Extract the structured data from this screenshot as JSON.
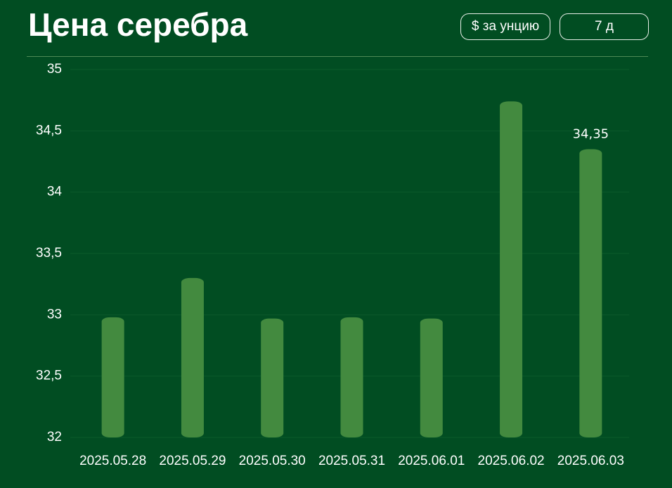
{
  "controls": {
    "unit": "$ за унцию",
    "period": "7 д"
  },
  "chart_data": {
    "type": "bar",
    "title": "Цена серебра",
    "categories": [
      "2025.05.28",
      "2025.05.29",
      "2025.05.30",
      "2025.05.31",
      "2025.06.01",
      "2025.06.02",
      "2025.06.03"
    ],
    "values": [
      32.98,
      33.3,
      32.97,
      32.98,
      32.97,
      34.74,
      34.35
    ],
    "value_labels": [
      null,
      null,
      null,
      null,
      null,
      null,
      "34,35"
    ],
    "color": "#438a3f",
    "ylim": [
      32,
      35
    ],
    "yticks": [
      32,
      {
        "value": 32.5,
        "label": "32,5"
      },
      33,
      {
        "value": 33.5,
        "label": "33,5"
      },
      34,
      {
        "value": 34.5,
        "label": "34,5"
      },
      35
    ],
    "grid": true
  }
}
